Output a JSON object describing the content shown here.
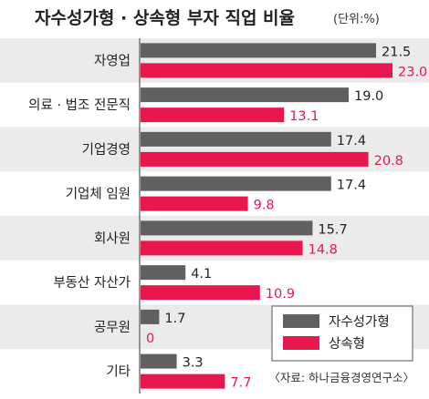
{
  "chart_data": {
    "type": "bar",
    "orientation": "horizontal",
    "title": "자수성가형 · 상속형 부자 직업 비율",
    "unit": "(단위:%)",
    "categories": [
      "자영업",
      "의료 · 법조 전문직",
      "기업경영",
      "기업체 임원",
      "회사원",
      "부동산 자산가",
      "공무원",
      "기타"
    ],
    "series": [
      {
        "name": "자수성가형",
        "color": "#606060",
        "values": [
          21.5,
          19.0,
          17.4,
          17.4,
          15.7,
          4.1,
          1.7,
          3.3
        ],
        "labels": [
          "21.5",
          "19.0",
          "17.4",
          "17.4",
          "15.7",
          "4.1",
          "1.7",
          "3.3"
        ]
      },
      {
        "name": "상속형",
        "color": "#e8174d",
        "values": [
          23.0,
          13.1,
          20.8,
          9.8,
          14.8,
          10.9,
          0,
          7.7
        ],
        "labels": [
          "23.0",
          "13.1",
          "20.8",
          "9.8",
          "14.8",
          "10.9",
          "0",
          "7.7"
        ]
      }
    ],
    "xlim": [
      0,
      26
    ],
    "legend": "bottom-right",
    "row_banding": true,
    "source": "〈자료: 하나금융경영연구소〉"
  }
}
